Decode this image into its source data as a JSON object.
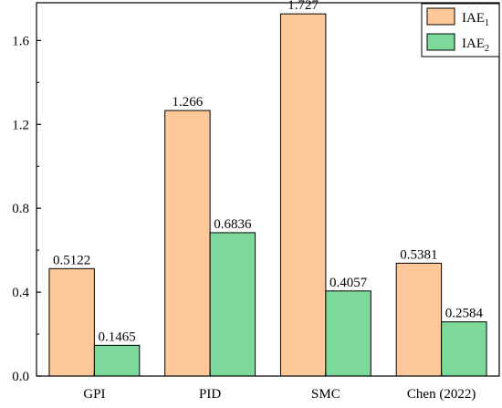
{
  "chart_data": {
    "type": "bar",
    "categories": [
      "GPI",
      "PID",
      "SMC",
      "Chen (2022)"
    ],
    "series": [
      {
        "name": "IAE1",
        "name_base": "IAE",
        "name_sub": "1",
        "color": "#FFC899",
        "values": [
          0.5122,
          1.266,
          1.727,
          0.5381
        ],
        "labels": [
          "0.5122",
          "1.266",
          "1.727",
          "0.5381"
        ]
      },
      {
        "name": "IAE2",
        "name_base": "IAE",
        "name_sub": "2",
        "color": "#7DD99A",
        "values": [
          0.1465,
          0.6836,
          0.4057,
          0.2584
        ],
        "labels": [
          "0.1465",
          "0.6836",
          "0.4057",
          "0.2584"
        ]
      }
    ],
    "yticks": [
      "0.0",
      "0.4",
      "0.8",
      "1.2",
      "1.6"
    ],
    "ylim": [
      0,
      1.78
    ],
    "grid": false,
    "legend": "top-right",
    "title": "",
    "xlabel": "",
    "ylabel": ""
  }
}
